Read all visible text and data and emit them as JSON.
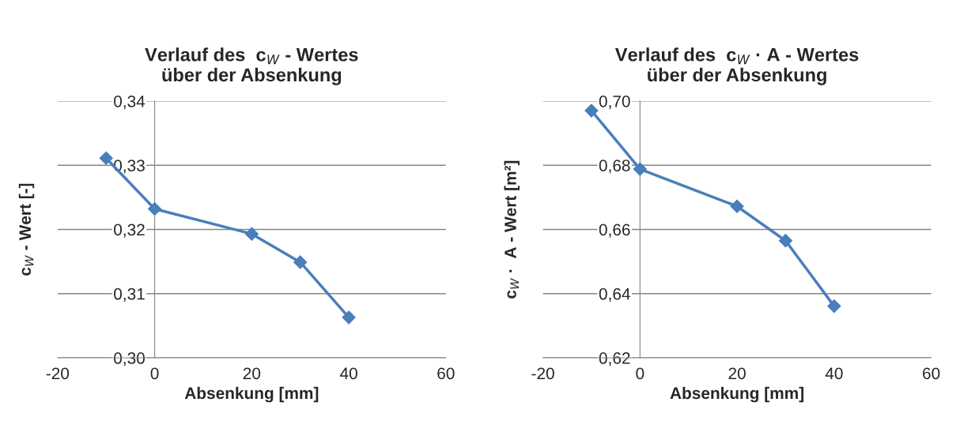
{
  "chart_data": [
    {
      "type": "line",
      "title": "Verlauf des  c$_{W}$ - Wertes\nüber der Absenkung",
      "xlabel": "Absenkung [mm]",
      "ylabel": "c$_{W}$ - Wert [-]",
      "x": [
        -10,
        0,
        20,
        30,
        40
      ],
      "series": [
        {
          "color": "#4a7ebb",
          "values": [
            0.3311,
            0.3232,
            0.3193,
            0.3149,
            0.3063
          ]
        }
      ],
      "xlim": [
        -20,
        60
      ],
      "xticks": [
        -20,
        0,
        20,
        40,
        60
      ],
      "ylim": [
        0.3,
        0.34
      ],
      "yticks": [
        {
          "value": 0.3,
          "label": "0,30"
        },
        {
          "value": 0.31,
          "label": "0,31"
        },
        {
          "value": 0.32,
          "label": "0,32"
        },
        {
          "value": 0.33,
          "label": "0,33"
        },
        {
          "value": 0.34,
          "label": "0,34"
        }
      ],
      "grid": "y",
      "marker": "diamond",
      "line_style": "solid",
      "legend": false
    },
    {
      "type": "line",
      "title": "Verlauf des  c$_{W}$ · A - Wertes\nüber der Absenkung",
      "xlabel": "Absenkung [mm]",
      "ylabel": "c$_{W}$ ·  A - Wert [m²]",
      "x": [
        -10,
        0,
        20,
        30,
        40
      ],
      "series": [
        {
          "color": "#4a7ebb",
          "values": [
            0.697,
            0.6788,
            0.6672,
            0.6565,
            0.6361
          ]
        }
      ],
      "xlim": [
        -20,
        60
      ],
      "xticks": [
        -20,
        0,
        20,
        40,
        60
      ],
      "ylim": [
        0.62,
        0.7
      ],
      "yticks": [
        {
          "value": 0.62,
          "label": "0,62"
        },
        {
          "value": 0.64,
          "label": "0,64"
        },
        {
          "value": 0.66,
          "label": "0,66"
        },
        {
          "value": 0.68,
          "label": "0,68"
        },
        {
          "value": 0.7,
          "label": "0,70"
        }
      ],
      "grid": "y",
      "marker": "diamond",
      "line_style": "solid",
      "legend": false
    }
  ]
}
